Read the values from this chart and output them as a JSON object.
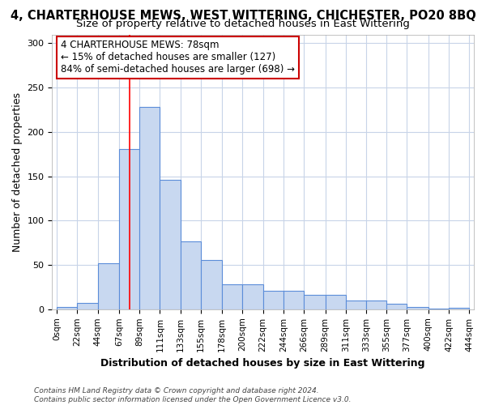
{
  "title_line1": "4, CHARTERHOUSE MEWS, WEST WITTERING, CHICHESTER, PO20 8BQ",
  "title_line2": "Size of property relative to detached houses in East Wittering",
  "xlabel": "Distribution of detached houses by size in East Wittering",
  "ylabel": "Number of detached properties",
  "footer_line1": "Contains HM Land Registry data © Crown copyright and database right 2024.",
  "footer_line2": "Contains public sector information licensed under the Open Government Licence v3.0.",
  "annotation_line1": "4 CHARTERHOUSE MEWS: 78sqm",
  "annotation_line2": "← 15% of detached houses are smaller (127)",
  "annotation_line3": "84% of semi-detached houses are larger (698) →",
  "bar_color": "#c8d8f0",
  "bar_edge_color": "#5b8dd9",
  "red_line_x": 78,
  "bin_edges": [
    0,
    22,
    44,
    67,
    89,
    111,
    133,
    155,
    178,
    200,
    222,
    244,
    266,
    289,
    311,
    333,
    355,
    377,
    400,
    422,
    444
  ],
  "bar_heights": [
    3,
    7,
    52,
    181,
    228,
    146,
    77,
    56,
    28,
    28,
    21,
    21,
    16,
    16,
    10,
    10,
    6,
    3,
    1,
    2
  ],
  "ylim": [
    0,
    310
  ],
  "xlim_min": -5,
  "xlim_max": 449,
  "background_color": "#ffffff",
  "grid_color": "#c8d4e8",
  "annotation_box_color": "#ffffff",
  "annotation_box_edge": "#cc0000",
  "title_fontsize": 10.5,
  "subtitle_fontsize": 9.5,
  "axis_label_fontsize": 9,
  "tick_fontsize": 7.5,
  "annotation_fontsize": 8.5,
  "yticks": [
    0,
    50,
    100,
    150,
    200,
    250,
    300
  ]
}
